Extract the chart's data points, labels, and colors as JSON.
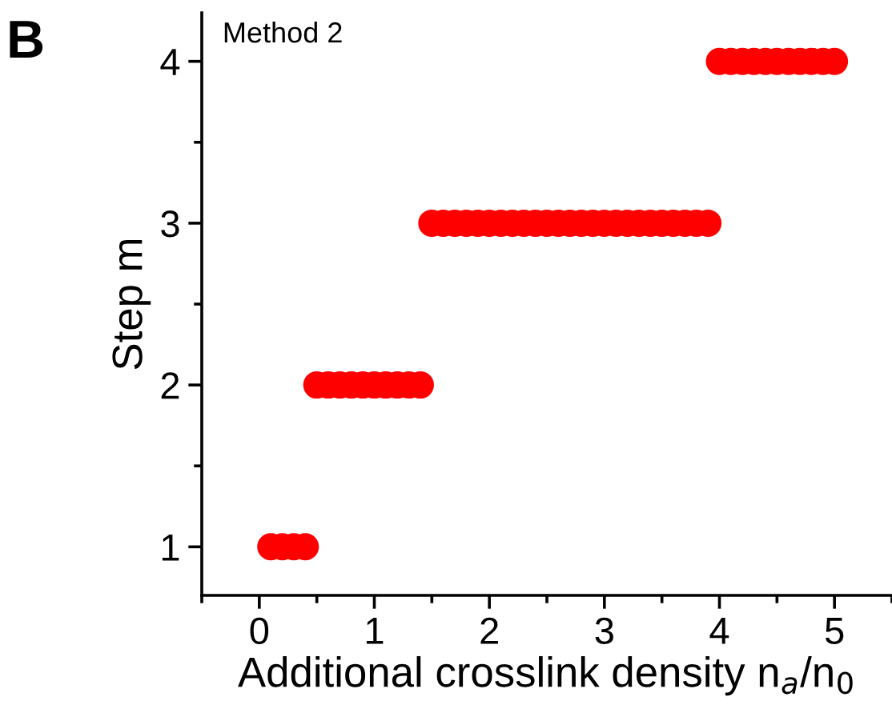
{
  "chart_data": {
    "type": "scatter",
    "xlabel": "Additional crosslink density n$_{a}$/n$_{0}$",
    "ylabel": "Step m",
    "annotations": [
      "B",
      "Method 2"
    ],
    "x": [
      0.1,
      0.2,
      0.3,
      0.4,
      0.5,
      0.6,
      0.7,
      0.8,
      0.9,
      1.0,
      1.1,
      1.2,
      1.3,
      1.4,
      1.5,
      1.6,
      1.7,
      1.8,
      1.9,
      2.0,
      2.1,
      2.2,
      2.3,
      2.4,
      2.5,
      2.6,
      2.7,
      2.8,
      2.9,
      3.0,
      3.1,
      3.2,
      3.3,
      3.4,
      3.5,
      3.6,
      3.7,
      3.8,
      3.9,
      4.0,
      4.1,
      4.2,
      4.3,
      4.4,
      4.5,
      4.6,
      4.7,
      4.8,
      4.9,
      5.0
    ],
    "series": [
      {
        "color": "#ff0000",
        "values": [
          1,
          1,
          1,
          1,
          2,
          2,
          2,
          2,
          2,
          2,
          2,
          2,
          2,
          2,
          3,
          3,
          3,
          3,
          3,
          3,
          3,
          3,
          3,
          3,
          3,
          3,
          3,
          3,
          3,
          3,
          3,
          3,
          3,
          3,
          3,
          3,
          3,
          3,
          3,
          4,
          4,
          4,
          4,
          4,
          4,
          4,
          4,
          4,
          4,
          4
        ]
      }
    ],
    "marker": "circle",
    "xlim": [
      -0.5,
      5.5
    ],
    "ylim": [
      0.7,
      4.3
    ],
    "xticks": [
      0,
      1,
      2,
      3,
      4,
      5
    ],
    "yticks": [
      1,
      2,
      3,
      4
    ],
    "grid": false,
    "legend": false
  }
}
